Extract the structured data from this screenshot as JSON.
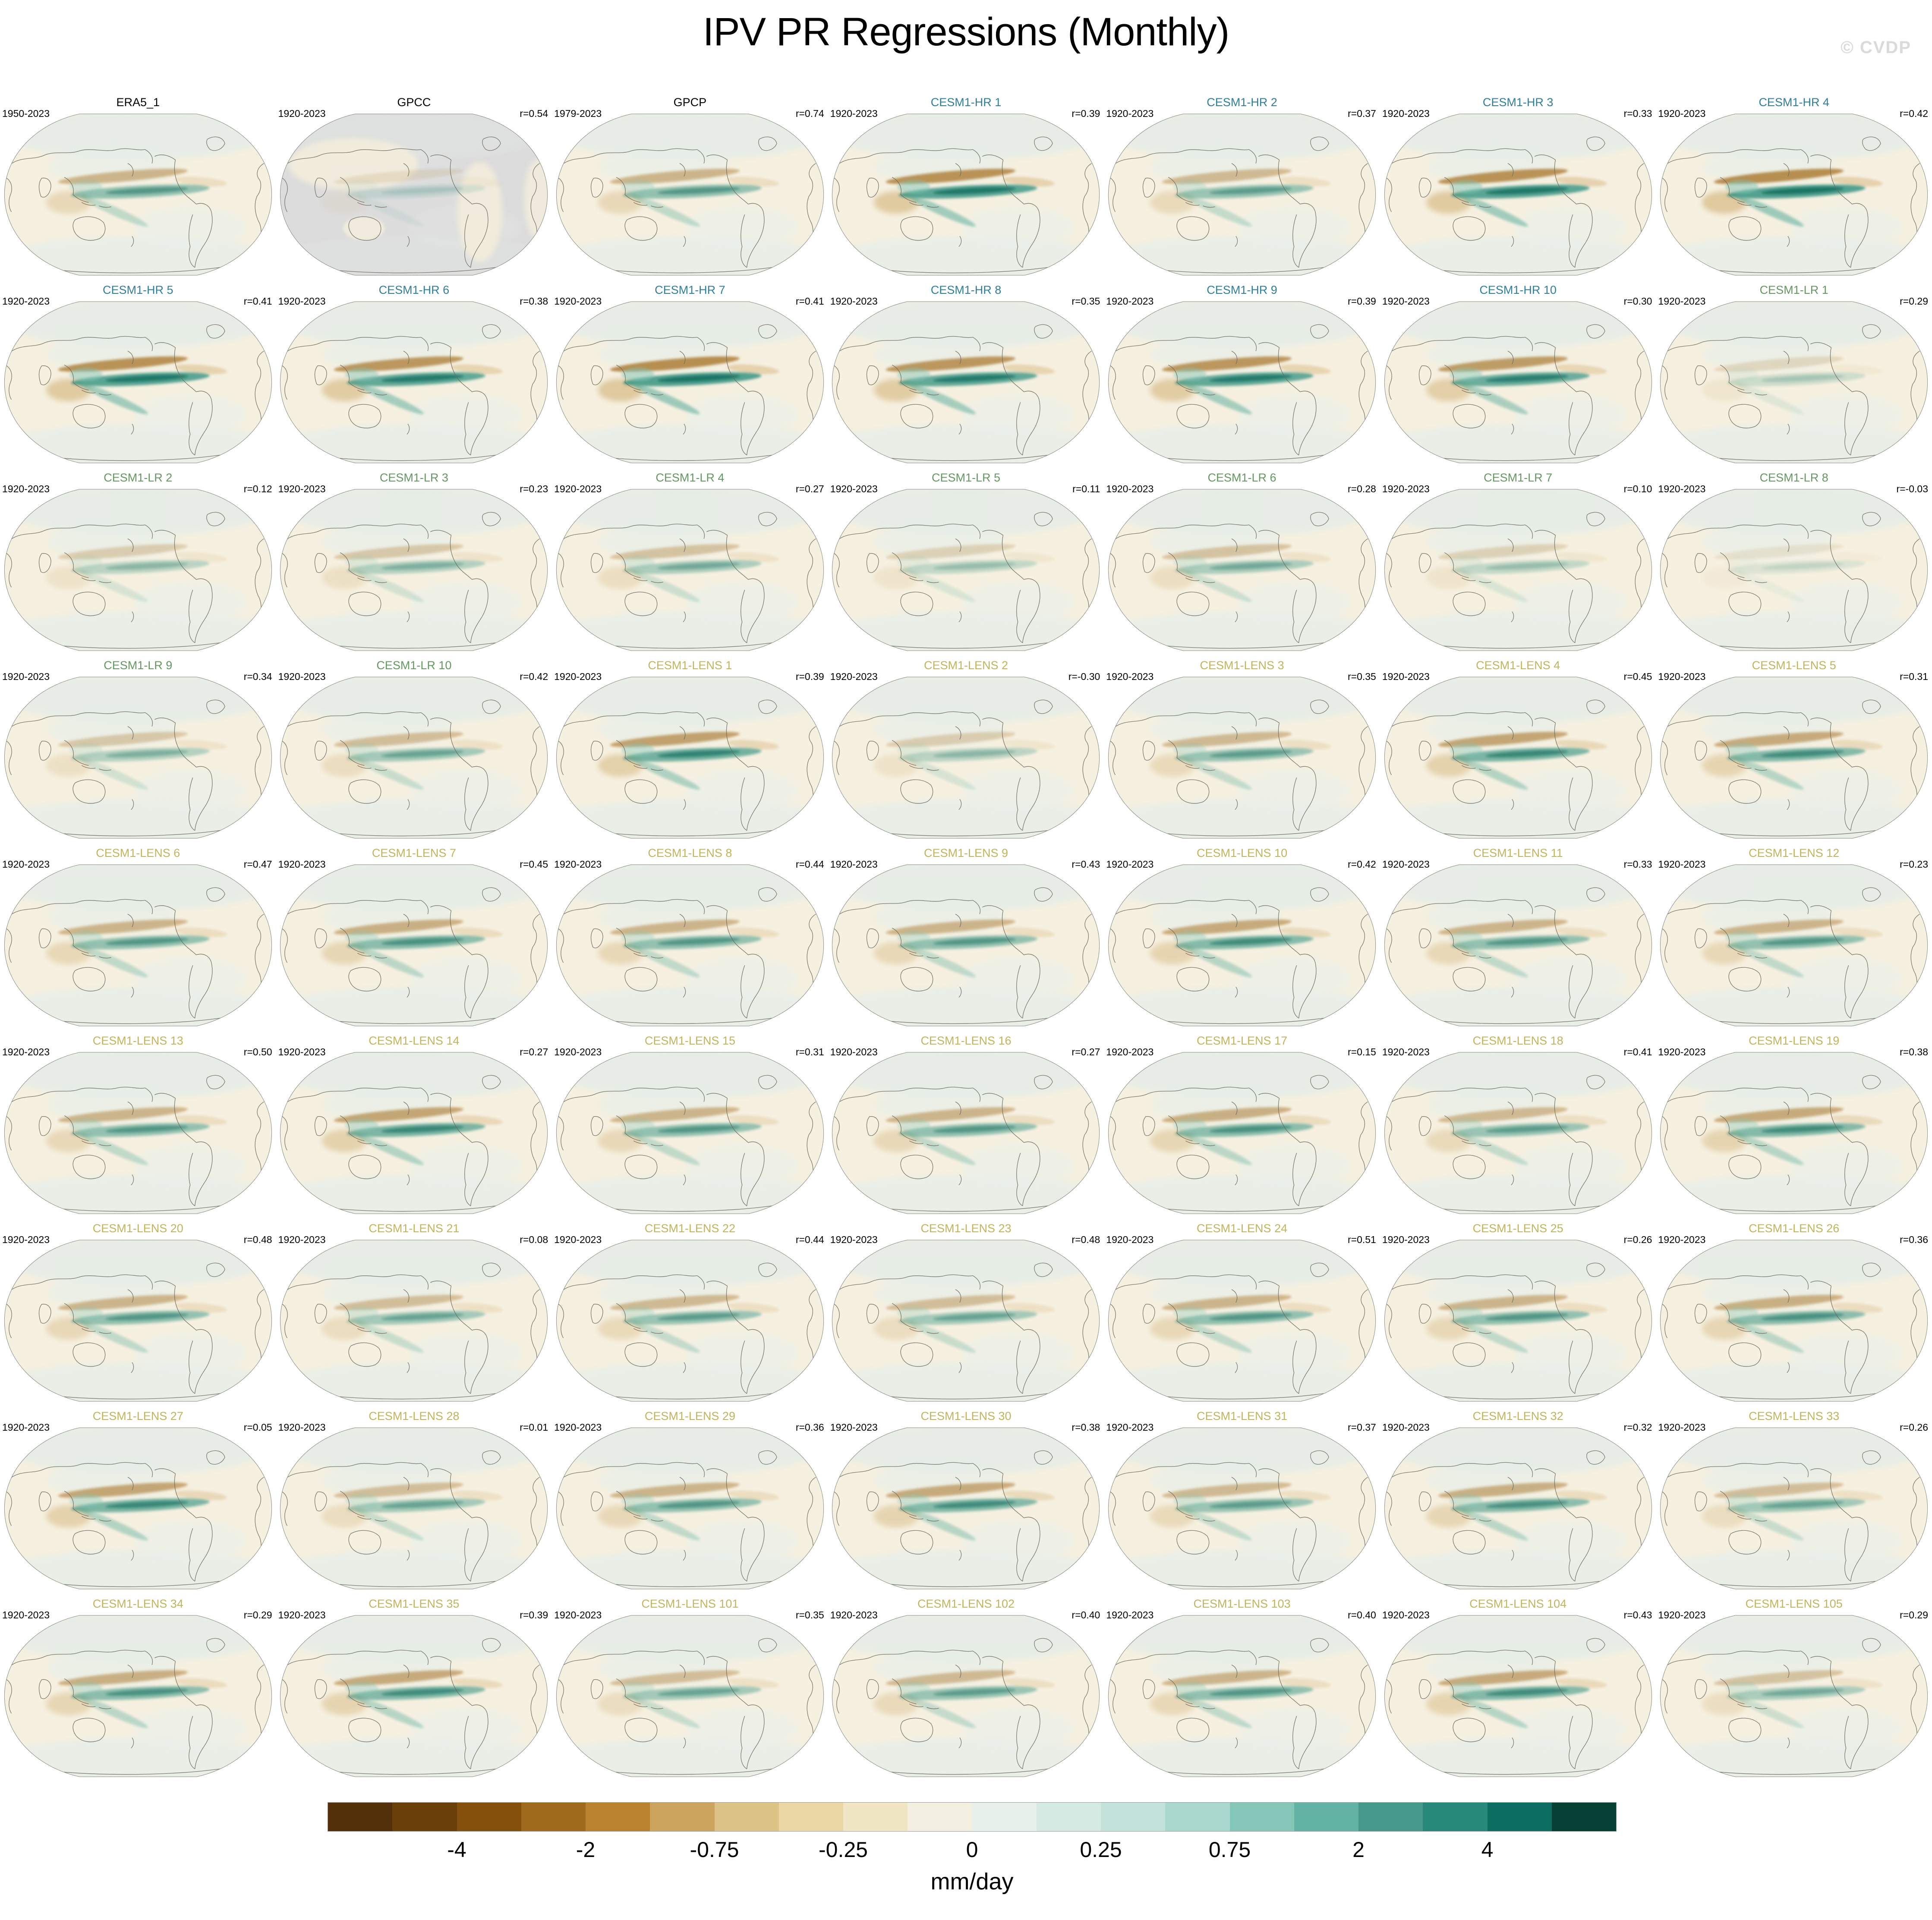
{
  "title": "IPV PR Regressions (Monthly)",
  "watermark": "© CVDP",
  "chart_data": {
    "type": "map",
    "subtype": "small-multiple regression maps (Robinson projection, Pacific-centered)",
    "title": "IPV PR Regressions (Monthly)",
    "units": "mm/day",
    "grid": {
      "columns": 7,
      "rows": 9
    },
    "colorbar": {
      "units": "mm/day",
      "tick_labels": [
        "-4",
        "-2",
        "-0.75",
        "-0.25",
        "0",
        "0.25",
        "0.75",
        "2",
        "4"
      ],
      "tick_values": [
        -4,
        -2,
        -0.75,
        -0.25,
        0,
        0.25,
        0.75,
        2,
        4
      ],
      "segment_colors": [
        "#53300a",
        "#6b4008",
        "#84500c",
        "#a06a1c",
        "#b8822e",
        "#cda45e",
        "#dec387",
        "#ead7a4",
        "#f0e6c3",
        "#f3efe1",
        "#e7f0eb",
        "#d5eae3",
        "#c3e2da",
        "#a9d8ce",
        "#84c7b8",
        "#63b3a5",
        "#45998b",
        "#27897a",
        "#0c6e61",
        "#054035"
      ]
    },
    "title_colors": {
      "obs": "#000000",
      "hr": "#2e7f9f",
      "lr": "#63995f",
      "lens": "#c3b45c"
    },
    "panels": [
      {
        "name": "ERA5_1",
        "years": "1950-2023",
        "r": null,
        "r_label": "",
        "group": "obs",
        "strength": 0.6,
        "gray": false
      },
      {
        "name": "GPCC",
        "years": "1920-2023",
        "r": 0.54,
        "r_label": "r=0.54",
        "group": "obs",
        "strength": 0.18,
        "gray": true
      },
      {
        "name": "GPCP",
        "years": "1979-2023",
        "r": 0.74,
        "r_label": "r=0.74",
        "group": "obs",
        "strength": 0.6,
        "gray": false
      },
      {
        "name": "CESM1-HR 1",
        "years": "1920-2023",
        "r": 0.39,
        "r_label": "r=0.39",
        "group": "hr",
        "strength": 0.95,
        "gray": false
      },
      {
        "name": "CESM1-HR 2",
        "years": "1920-2023",
        "r": 0.37,
        "r_label": "r=0.37",
        "group": "hr",
        "strength": 0.55,
        "gray": false
      },
      {
        "name": "CESM1-HR 3",
        "years": "1920-2023",
        "r": 0.33,
        "r_label": "r=0.33",
        "group": "hr",
        "strength": 0.95,
        "gray": false
      },
      {
        "name": "CESM1-HR 4",
        "years": "1920-2023",
        "r": 0.42,
        "r_label": "r=0.42",
        "group": "hr",
        "strength": 1.0,
        "gray": false
      },
      {
        "name": "CESM1-HR 5",
        "years": "1920-2023",
        "r": 0.41,
        "r_label": "r=0.41",
        "group": "hr",
        "strength": 0.95,
        "gray": false
      },
      {
        "name": "CESM1-HR 6",
        "years": "1920-2023",
        "r": 0.38,
        "r_label": "r=0.38",
        "group": "hr",
        "strength": 0.9,
        "gray": false
      },
      {
        "name": "CESM1-HR 7",
        "years": "1920-2023",
        "r": 0.41,
        "r_label": "r=0.41",
        "group": "hr",
        "strength": 1.0,
        "gray": false
      },
      {
        "name": "CESM1-HR 8",
        "years": "1920-2023",
        "r": 0.35,
        "r_label": "r=0.35",
        "group": "hr",
        "strength": 0.9,
        "gray": false
      },
      {
        "name": "CESM1-HR 9",
        "years": "1920-2023",
        "r": 0.39,
        "r_label": "r=0.39",
        "group": "hr",
        "strength": 0.9,
        "gray": false
      },
      {
        "name": "CESM1-HR 10",
        "years": "1920-2023",
        "r": 0.3,
        "r_label": "r=0.30",
        "group": "hr",
        "strength": 0.85,
        "gray": false
      },
      {
        "name": "CESM1-LR 1",
        "years": "1920-2023",
        "r": 0.29,
        "r_label": "r=0.29",
        "group": "lr",
        "strength": 0.25,
        "gray": false
      },
      {
        "name": "CESM1-LR 2",
        "years": "1920-2023",
        "r": 0.12,
        "r_label": "r=0.12",
        "group": "lr",
        "strength": 0.35,
        "gray": false
      },
      {
        "name": "CESM1-LR 3",
        "years": "1920-2023",
        "r": 0.23,
        "r_label": "r=0.23",
        "group": "lr",
        "strength": 0.4,
        "gray": false
      },
      {
        "name": "CESM1-LR 4",
        "years": "1920-2023",
        "r": 0.27,
        "r_label": "r=0.27",
        "group": "lr",
        "strength": 0.45,
        "gray": false
      },
      {
        "name": "CESM1-LR 5",
        "years": "1920-2023",
        "r": 0.11,
        "r_label": "r=0.11",
        "group": "lr",
        "strength": 0.3,
        "gray": false
      },
      {
        "name": "CESM1-LR 6",
        "years": "1920-2023",
        "r": 0.28,
        "r_label": "r=0.28",
        "group": "lr",
        "strength": 0.45,
        "gray": false
      },
      {
        "name": "CESM1-LR 7",
        "years": "1920-2023",
        "r": 0.1,
        "r_label": "r=0.10",
        "group": "lr",
        "strength": 0.3,
        "gray": false
      },
      {
        "name": "CESM1-LR 8",
        "years": "1920-2023",
        "r": -0.03,
        "r_label": "r=-0.03",
        "group": "lr",
        "strength": 0.15,
        "gray": false
      },
      {
        "name": "CESM1-LR 9",
        "years": "1920-2023",
        "r": 0.34,
        "r_label": "r=0.34",
        "group": "lr",
        "strength": 0.4,
        "gray": false
      },
      {
        "name": "CESM1-LR 10",
        "years": "1920-2023",
        "r": 0.42,
        "r_label": "r=0.42",
        "group": "lr",
        "strength": 0.5,
        "gray": false
      },
      {
        "name": "CESM1-LENS 1",
        "years": "1920-2023",
        "r": 0.39,
        "r_label": "r=0.39",
        "group": "lens",
        "strength": 0.8,
        "gray": false
      },
      {
        "name": "CESM1-LENS 2",
        "years": "1920-2023",
        "r": -0.3,
        "r_label": "r=-0.30",
        "group": "lens",
        "strength": 0.35,
        "gray": false
      },
      {
        "name": "CESM1-LENS 3",
        "years": "1920-2023",
        "r": 0.35,
        "r_label": "r=0.35",
        "group": "lens",
        "strength": 0.55,
        "gray": false
      },
      {
        "name": "CESM1-LENS 4",
        "years": "1920-2023",
        "r": 0.45,
        "r_label": "r=0.45",
        "group": "lens",
        "strength": 0.75,
        "gray": false
      },
      {
        "name": "CESM1-LENS 5",
        "years": "1920-2023",
        "r": 0.31,
        "r_label": "r=0.31",
        "group": "lens",
        "strength": 0.7,
        "gray": false
      },
      {
        "name": "CESM1-LENS 6",
        "years": "1920-2023",
        "r": 0.47,
        "r_label": "r=0.47",
        "group": "lens",
        "strength": 0.6,
        "gray": false
      },
      {
        "name": "CESM1-LENS 7",
        "years": "1920-2023",
        "r": 0.45,
        "r_label": "r=0.45",
        "group": "lens",
        "strength": 0.65,
        "gray": false
      },
      {
        "name": "CESM1-LENS 8",
        "years": "1920-2023",
        "r": 0.44,
        "r_label": "r=0.44",
        "group": "lens",
        "strength": 0.6,
        "gray": false
      },
      {
        "name": "CESM1-LENS 9",
        "years": "1920-2023",
        "r": 0.43,
        "r_label": "r=0.43",
        "group": "lens",
        "strength": 0.6,
        "gray": false
      },
      {
        "name": "CESM1-LENS 10",
        "years": "1920-2023",
        "r": 0.42,
        "r_label": "r=0.42",
        "group": "lens",
        "strength": 0.7,
        "gray": false
      },
      {
        "name": "CESM1-LENS 11",
        "years": "1920-2023",
        "r": 0.33,
        "r_label": "r=0.33",
        "group": "lens",
        "strength": 0.6,
        "gray": false
      },
      {
        "name": "CESM1-LENS 12",
        "years": "1920-2023",
        "r": 0.23,
        "r_label": "r=0.23",
        "group": "lens",
        "strength": 0.6,
        "gray": false
      },
      {
        "name": "CESM1-LENS 13",
        "years": "1920-2023",
        "r": 0.5,
        "r_label": "r=0.50",
        "group": "lens",
        "strength": 0.6,
        "gray": false
      },
      {
        "name": "CESM1-LENS 14",
        "years": "1920-2023",
        "r": 0.27,
        "r_label": "r=0.27",
        "group": "lens",
        "strength": 0.75,
        "gray": false
      },
      {
        "name": "CESM1-LENS 15",
        "years": "1920-2023",
        "r": 0.31,
        "r_label": "r=0.31",
        "group": "lens",
        "strength": 0.6,
        "gray": false
      },
      {
        "name": "CESM1-LENS 16",
        "years": "1920-2023",
        "r": 0.27,
        "r_label": "r=0.27",
        "group": "lens",
        "strength": 0.6,
        "gray": false
      },
      {
        "name": "CESM1-LENS 17",
        "years": "1920-2023",
        "r": 0.15,
        "r_label": "r=0.15",
        "group": "lens",
        "strength": 0.65,
        "gray": false
      },
      {
        "name": "CESM1-LENS 18",
        "years": "1920-2023",
        "r": 0.41,
        "r_label": "r=0.41",
        "group": "lens",
        "strength": 0.55,
        "gray": false
      },
      {
        "name": "CESM1-LENS 19",
        "years": "1920-2023",
        "r": 0.38,
        "r_label": "r=0.38",
        "group": "lens",
        "strength": 0.7,
        "gray": false
      },
      {
        "name": "CESM1-LENS 20",
        "years": "1920-2023",
        "r": 0.48,
        "r_label": "r=0.48",
        "group": "lens",
        "strength": 0.6,
        "gray": false
      },
      {
        "name": "CESM1-LENS 21",
        "years": "1920-2023",
        "r": 0.08,
        "r_label": "r=0.08",
        "group": "lens",
        "strength": 0.5,
        "gray": false
      },
      {
        "name": "CESM1-LENS 22",
        "years": "1920-2023",
        "r": 0.44,
        "r_label": "r=0.44",
        "group": "lens",
        "strength": 0.55,
        "gray": false
      },
      {
        "name": "CESM1-LENS 23",
        "years": "1920-2023",
        "r": 0.48,
        "r_label": "r=0.48",
        "group": "lens",
        "strength": 0.5,
        "gray": false
      },
      {
        "name": "CESM1-LENS 24",
        "years": "1920-2023",
        "r": 0.51,
        "r_label": "r=0.51",
        "group": "lens",
        "strength": 0.6,
        "gray": false
      },
      {
        "name": "CESM1-LENS 25",
        "years": "1920-2023",
        "r": 0.26,
        "r_label": "r=0.26",
        "group": "lens",
        "strength": 0.6,
        "gray": false
      },
      {
        "name": "CESM1-LENS 26",
        "years": "1920-2023",
        "r": 0.36,
        "r_label": "r=0.36",
        "group": "lens",
        "strength": 0.65,
        "gray": false
      },
      {
        "name": "CESM1-LENS 27",
        "years": "1920-2023",
        "r": 0.05,
        "r_label": "r=0.05",
        "group": "lens",
        "strength": 0.75,
        "gray": false
      },
      {
        "name": "CESM1-LENS 28",
        "years": "1920-2023",
        "r": 0.01,
        "r_label": "r=0.01",
        "group": "lens",
        "strength": 0.5,
        "gray": false
      },
      {
        "name": "CESM1-LENS 29",
        "years": "1920-2023",
        "r": 0.36,
        "r_label": "r=0.36",
        "group": "lens",
        "strength": 0.6,
        "gray": false
      },
      {
        "name": "CESM1-LENS 30",
        "years": "1920-2023",
        "r": 0.38,
        "r_label": "r=0.38",
        "group": "lens",
        "strength": 0.7,
        "gray": false
      },
      {
        "name": "CESM1-LENS 31",
        "years": "1920-2023",
        "r": 0.37,
        "r_label": "r=0.37",
        "group": "lens",
        "strength": 0.55,
        "gray": false
      },
      {
        "name": "CESM1-LENS 32",
        "years": "1920-2023",
        "r": 0.32,
        "r_label": "r=0.32",
        "group": "lens",
        "strength": 0.65,
        "gray": false
      },
      {
        "name": "CESM1-LENS 33",
        "years": "1920-2023",
        "r": 0.26,
        "r_label": "r=0.26",
        "group": "lens",
        "strength": 0.5,
        "gray": false
      },
      {
        "name": "CESM1-LENS 34",
        "years": "1920-2023",
        "r": 0.29,
        "r_label": "r=0.29",
        "group": "lens",
        "strength": 0.65,
        "gray": false
      },
      {
        "name": "CESM1-LENS 35",
        "years": "1920-2023",
        "r": 0.39,
        "r_label": "r=0.39",
        "group": "lens",
        "strength": 0.7,
        "gray": false
      },
      {
        "name": "CESM1-LENS 101",
        "years": "1920-2023",
        "r": 0.35,
        "r_label": "r=0.35",
        "group": "lens",
        "strength": 0.5,
        "gray": false
      },
      {
        "name": "CESM1-LENS 102",
        "years": "1920-2023",
        "r": 0.4,
        "r_label": "r=0.40",
        "group": "lens",
        "strength": 0.55,
        "gray": false
      },
      {
        "name": "CESM1-LENS 103",
        "years": "1920-2023",
        "r": 0.4,
        "r_label": "r=0.40",
        "group": "lens",
        "strength": 0.6,
        "gray": false
      },
      {
        "name": "CESM1-LENS 104",
        "years": "1920-2023",
        "r": 0.43,
        "r_label": "r=0.43",
        "group": "lens",
        "strength": 0.7,
        "gray": false
      },
      {
        "name": "CESM1-LENS 105",
        "years": "1920-2023",
        "r": 0.29,
        "r_label": "r=0.29",
        "group": "lens",
        "strength": 0.45,
        "gray": false
      }
    ]
  }
}
